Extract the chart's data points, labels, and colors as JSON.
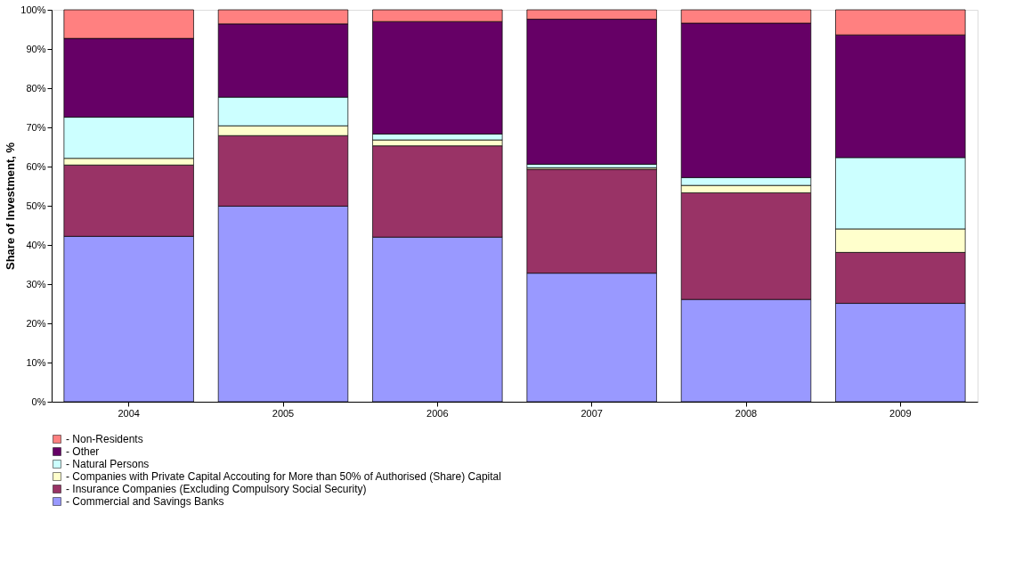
{
  "chart_data": {
    "type": "bar",
    "stacked": true,
    "ylabel": "Share of Investment, %",
    "categories": [
      "2004",
      "2005",
      "2006",
      "2007",
      "2008",
      "2009"
    ],
    "series": [
      {
        "name": "- Commercial and Savings Banks",
        "color": "#9999ff",
        "values": [
          42.2,
          49.9,
          42.0,
          32.8,
          26.1,
          25.1
        ]
      },
      {
        "name": "- Insurance Companies (Excluding Compulsory Social Security)",
        "color": "#993366",
        "values": [
          18.2,
          18.0,
          23.3,
          26.5,
          27.2,
          13.0
        ]
      },
      {
        "name": "- Companies with Private Capital Accouting for More than 50% of Authorised (Share) Capital",
        "color": "#ffffcc",
        "values": [
          1.7,
          2.5,
          1.5,
          0.4,
          1.9,
          6.0
        ]
      },
      {
        "name": "- Natural Persons",
        "color": "#ccffff",
        "values": [
          10.5,
          7.3,
          1.5,
          0.9,
          2.0,
          18.2
        ]
      },
      {
        "name": "- Other",
        "color": "#660066",
        "values": [
          20.1,
          18.7,
          28.7,
          37.0,
          39.4,
          31.3
        ]
      },
      {
        "name": "- Non-Residents",
        "color": "#ff8080",
        "values": [
          7.3,
          3.6,
          3.0,
          2.4,
          3.4,
          6.4
        ]
      }
    ],
    "ylim": [
      0,
      100
    ],
    "yticks": [
      {
        "value": 0,
        "label": "0%"
      },
      {
        "value": 10,
        "label": "10%"
      },
      {
        "value": 20,
        "label": "20%"
      },
      {
        "value": 30,
        "label": "30%"
      },
      {
        "value": 40,
        "label": "40%"
      },
      {
        "value": 50,
        "label": "50%"
      },
      {
        "value": 60,
        "label": "60%"
      },
      {
        "value": 70,
        "label": "70%"
      },
      {
        "value": 80,
        "label": "80%"
      },
      {
        "value": 90,
        "label": "90%"
      },
      {
        "value": 100,
        "label": "100%"
      }
    ],
    "grid": false,
    "legend": "bottom"
  }
}
